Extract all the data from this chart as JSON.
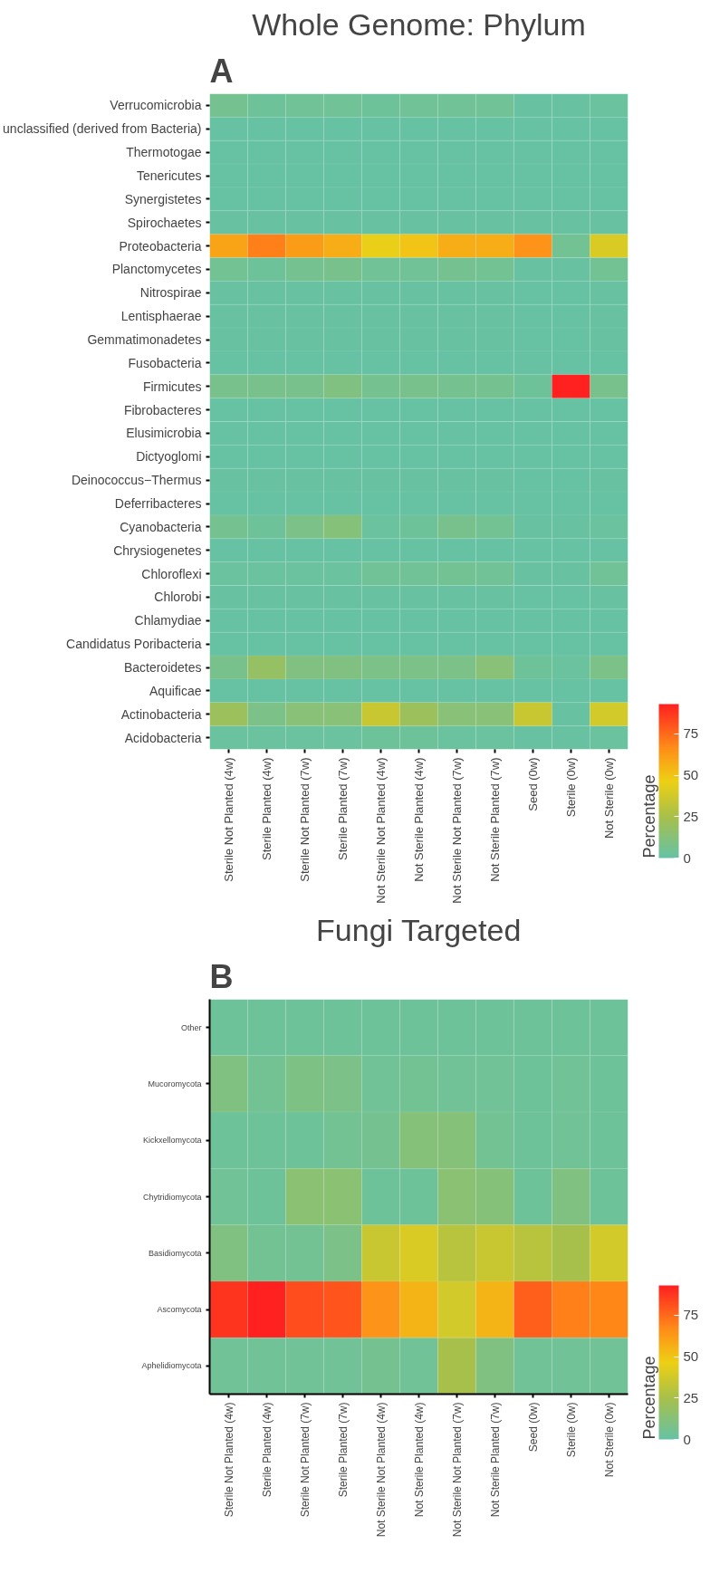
{
  "chart_data": [
    {
      "type": "heatmap",
      "title": "Whole Genome: Phylum",
      "annotations": [
        "A"
      ],
      "legend_title": "Percentage",
      "categories": [
        "Sterile Not Planted (4w)",
        "Sterile Planted (4w)",
        "Sterile Not Planted (7w)",
        "Sterile Planted (7w)",
        "Not Sterile Not Planted (4w)",
        "Not Sterile Planted (4w)",
        "Not Sterile Not Planted (7w)",
        "Not Sterile Planted (7w)",
        "Seed (0w)",
        "Sterile (0w)",
        "Not Sterile (0w)"
      ],
      "y_categories": [
        "Verrucomicrobia",
        "unclassified (derived from Bacteria)",
        "Thermotogae",
        "Tenericutes",
        "Synergistetes",
        "Spirochaetes",
        "Proteobacteria",
        "Planctomycetes",
        "Nitrospirae",
        "Lentisphaerae",
        "Gemmatimonadetes",
        "Fusobacteria",
        "Firmicutes",
        "Fibrobacteres",
        "Elusimicrobia",
        "Dictyoglomi",
        "Deinococcus−Thermus",
        "Deferribacteres",
        "Cyanobacteria",
        "Chrysiogenetes",
        "Chloroflexi",
        "Chlorobi",
        "Chlamydiae",
        "Candidatus Poribacteria",
        "Bacteroidetes",
        "Aquificae",
        "Actinobacteria",
        "Acidobacteria"
      ],
      "cells": [
        [
          6,
          3,
          4,
          4,
          3,
          4,
          4,
          4,
          1,
          1,
          2
        ],
        [
          0.5,
          0.5,
          0.5,
          0.5,
          0.5,
          0.5,
          0.5,
          0.5,
          0.5,
          0.5,
          0.5
        ],
        [
          0.5,
          0.5,
          0.5,
          0.5,
          0.5,
          0.5,
          0.5,
          0.5,
          0.5,
          0.5,
          0.5
        ],
        [
          0.5,
          0.5,
          0.5,
          0.5,
          0.5,
          0.5,
          0.5,
          0.5,
          0.5,
          0.5,
          0.5
        ],
        [
          0.5,
          0.5,
          0.5,
          0.5,
          0.5,
          0.5,
          0.5,
          0.5,
          0.5,
          0.5,
          0.5
        ],
        [
          1,
          1,
          1,
          1,
          1,
          1,
          1,
          1,
          1,
          1,
          1
        ],
        [
          60,
          70,
          62,
          57,
          45,
          50,
          57,
          57,
          65,
          5,
          40
        ],
        [
          5,
          3,
          6,
          7,
          4,
          4,
          6,
          5,
          1,
          1,
          5
        ],
        [
          1,
          1,
          1,
          1,
          1,
          1,
          1,
          1,
          0.5,
          0.5,
          1
        ],
        [
          1,
          1,
          1,
          1,
          1,
          1,
          1,
          1,
          0.5,
          0.5,
          1
        ],
        [
          1,
          1,
          1,
          1,
          1,
          1,
          1,
          1,
          0.5,
          0.5,
          1
        ],
        [
          0.5,
          0.5,
          0.5,
          0.5,
          0.5,
          0.5,
          0.5,
          0.5,
          0.5,
          0.5,
          0.5
        ],
        [
          7,
          7,
          7,
          10,
          6,
          7,
          6,
          6,
          3,
          93,
          7
        ],
        [
          0.5,
          0.5,
          0.5,
          0.5,
          0.5,
          0.5,
          0.5,
          0.5,
          0.5,
          0.5,
          0.5
        ],
        [
          0.5,
          0.5,
          0.5,
          0.5,
          0.5,
          0.5,
          0.5,
          0.5,
          0.5,
          0.5,
          0.5
        ],
        [
          0.5,
          0.5,
          0.5,
          0.5,
          0.5,
          0.5,
          0.5,
          0.5,
          0.5,
          0.5,
          0.5
        ],
        [
          1,
          1,
          1,
          1,
          1,
          1,
          1,
          1,
          0.5,
          0.5,
          1
        ],
        [
          0.5,
          0.5,
          0.5,
          0.5,
          0.5,
          0.5,
          0.5,
          0.5,
          0.5,
          0.5,
          0.5
        ],
        [
          6,
          3,
          8,
          12,
          2,
          3,
          7,
          5,
          1,
          1,
          2
        ],
        [
          0.5,
          0.5,
          0.5,
          0.5,
          0.5,
          0.5,
          0.5,
          0.5,
          0.5,
          0.5,
          0.5
        ],
        [
          2,
          2,
          2,
          2,
          4,
          4,
          5,
          4,
          1,
          1,
          4
        ],
        [
          1,
          1,
          1,
          1,
          1,
          1,
          1,
          1,
          0.5,
          0.5,
          1
        ],
        [
          0.5,
          0.5,
          0.5,
          0.5,
          0.5,
          0.5,
          0.5,
          0.5,
          0.5,
          0.5,
          0.5
        ],
        [
          0.5,
          0.5,
          0.5,
          0.5,
          0.5,
          0.5,
          0.5,
          0.5,
          0.5,
          0.5,
          0.5
        ],
        [
          7,
          18,
          10,
          10,
          8,
          8,
          8,
          13,
          3,
          2,
          8
        ],
        [
          0.5,
          0.5,
          0.5,
          0.5,
          0.5,
          0.5,
          0.5,
          0.5,
          0.5,
          0.5,
          0.5
        ],
        [
          20,
          8,
          13,
          13,
          35,
          20,
          13,
          13,
          35,
          1,
          38
        ],
        [
          2,
          2,
          2,
          2,
          3,
          3,
          2,
          2,
          1,
          1,
          2
        ]
      ],
      "clim": [
        0,
        93
      ],
      "cticks": [
        0,
        25,
        50,
        75
      ]
    },
    {
      "type": "heatmap",
      "title": "Fungi Targeted",
      "annotations": [
        "B"
      ],
      "legend_title": "Percentage",
      "categories": [
        "Sterile Not Planted (4w)",
        "Sterile Planted (4w)",
        "Sterile Not Planted (7w)",
        "Sterile Planted (7w)",
        "Not Sterile Not Planted (4w)",
        "Not Sterile Planted (4w)",
        "Not Sterile Not Planted (7w)",
        "Not Sterile Planted (7w)",
        "Seed (0w)",
        "Sterile (0w)",
        "Not Sterile (0w)"
      ],
      "y_categories": [
        "Other",
        "Mucoromycota",
        "Kickxellomycota",
        "Chytridiomycota",
        "Basidiomycota",
        "Ascomycota",
        "Aphelidiomycota"
      ],
      "cells": [
        [
          3,
          3,
          3,
          3,
          3,
          3,
          3,
          3,
          3,
          3,
          3
        ],
        [
          10,
          5,
          9,
          8,
          4,
          5,
          4,
          4,
          3,
          4,
          3
        ],
        [
          3,
          3,
          3,
          5,
          6,
          12,
          12,
          5,
          3,
          4,
          3
        ],
        [
          4,
          3,
          14,
          14,
          3,
          3,
          14,
          12,
          3,
          10,
          3
        ],
        [
          10,
          5,
          5,
          8,
          35,
          40,
          30,
          35,
          30,
          25,
          38
        ],
        [
          88,
          93,
          82,
          80,
          65,
          55,
          38,
          55,
          78,
          70,
          68
        ],
        [
          4,
          4,
          4,
          4,
          6,
          4,
          25,
          10,
          4,
          4,
          4
        ]
      ],
      "clim": [
        0,
        93
      ],
      "cticks": [
        0,
        25,
        50,
        75
      ]
    }
  ]
}
